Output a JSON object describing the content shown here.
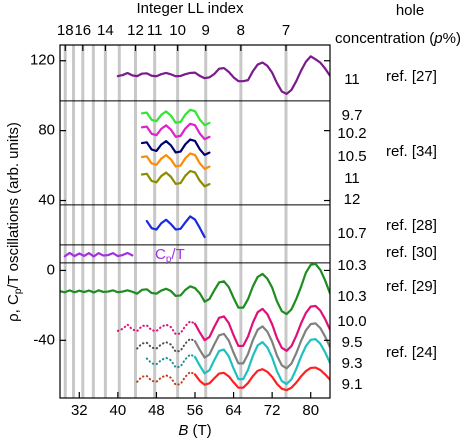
{
  "chart_data": {
    "type": "line",
    "x_label": [
      "B",
      " (T)"
    ],
    "y_label": [
      "ρ, C",
      "p",
      "/T oscillations (arb. units)"
    ],
    "x2_label": "Integer LL index",
    "right_header": [
      "hole",
      "concentration (",
      "p",
      "%)"
    ],
    "annotation": [
      "C",
      "p",
      "/T"
    ],
    "xlim": [
      28,
      84
    ],
    "xticks": [
      32,
      40,
      48,
      56,
      64,
      72,
      80
    ],
    "ylim": [
      -73,
      129
    ],
    "yticks": [
      -40,
      0,
      40,
      80,
      120
    ],
    "x2scale": "reciprocal",
    "x2lim": [
      18.7,
      6.24
    ],
    "x2ticks": [
      18,
      16,
      14,
      12,
      11,
      10,
      9,
      8,
      7
    ],
    "x2grid": [
      18,
      17,
      16,
      15,
      14,
      13,
      12,
      11,
      10,
      9,
      8,
      7
    ],
    "grid_color": "#c8c8c8",
    "dividers": [
      97,
      37.5,
      14.6,
      4.3
    ],
    "hole_labels": [
      "11",
      "9.7",
      "10.2",
      "10.5",
      "11",
      "12",
      "10.7",
      "10.3",
      "10.3",
      "10.0",
      "9.5",
      "9.3",
      "9.1"
    ],
    "refs": [
      "ref. [27]",
      "ref. [34]",
      "ref. [28]",
      "ref. [30]",
      "ref. [29]",
      "ref. [24]"
    ],
    "series": [
      {
        "color": "#7b1a8c",
        "x": [
          40,
          41,
          42,
          43,
          44,
          45,
          46,
          47,
          48,
          49,
          50,
          51,
          52,
          53,
          54,
          55,
          56,
          57,
          58,
          59,
          60,
          61,
          62,
          63,
          64,
          65,
          66,
          67,
          68,
          69,
          70,
          71,
          72,
          73,
          74,
          75,
          76,
          77,
          78,
          79,
          80,
          81,
          82,
          83,
          84
        ],
        "values": [
          111.2,
          111.8,
          113.0,
          111.6,
          111.2,
          112.6,
          112.8,
          111.4,
          111.1,
          112.3,
          113.0,
          112.2,
          111.1,
          111.3,
          112.3,
          113.0,
          113.2,
          111.3,
          110.0,
          110.5,
          112.4,
          115.4,
          115.8,
          113.6,
          110.5,
          108.3,
          108.3,
          108.9,
          114.0,
          117.8,
          119.0,
          117.1,
          113.2,
          107.2,
          102.4,
          101.0,
          103.3,
          108.3,
          114.3,
          119.4,
          122.5,
          120.8,
          118.9,
          115.5,
          111.4
        ]
      },
      {
        "color": "#33e633",
        "x": [
          45,
          46,
          47,
          48,
          49,
          50,
          51,
          52,
          53,
          54,
          55,
          56,
          57,
          58,
          59
        ],
        "values": [
          89.9,
          90.3,
          86.2,
          85.4,
          89.0,
          91.0,
          88.6,
          84.5,
          85.0,
          89.2,
          91.9,
          91.1,
          86.3,
          83.1,
          84.4
        ]
      },
      {
        "color": "#e020c8",
        "x": [
          45,
          46,
          47,
          48,
          49,
          50,
          51,
          52,
          53,
          54,
          55,
          56,
          57,
          58,
          59
        ],
        "values": [
          81.9,
          82.3,
          78.2,
          77.4,
          81.0,
          83.0,
          80.6,
          76.5,
          77.0,
          81.2,
          83.9,
          83.1,
          78.3,
          75.1,
          76.4
        ]
      },
      {
        "color": "#000070",
        "x": [
          45,
          46,
          47,
          48,
          49,
          50,
          51,
          52,
          53,
          54,
          55,
          56,
          57,
          58,
          59
        ],
        "values": [
          72.9,
          73.3,
          69.2,
          68.4,
          72.0,
          74.0,
          71.6,
          67.5,
          68.0,
          72.2,
          74.9,
          74.1,
          69.3,
          66.1,
          67.4
        ]
      },
      {
        "color": "#ff8c00",
        "x": [
          45,
          46,
          47,
          48,
          49,
          50,
          51,
          52,
          53,
          54,
          55,
          56,
          57,
          58,
          59
        ],
        "values": [
          64.9,
          65.3,
          61.2,
          60.4,
          64.0,
          66.0,
          63.6,
          59.5,
          60.0,
          64.2,
          66.9,
          66.1,
          61.3,
          58.1,
          59.4
        ]
      },
      {
        "color": "#8c8c00",
        "x": [
          45,
          46,
          47,
          48,
          49,
          50,
          51,
          52,
          53,
          54,
          55,
          56,
          57,
          58,
          59
        ],
        "values": [
          54.9,
          55.3,
          51.2,
          50.4,
          54.0,
          56.0,
          53.6,
          49.5,
          50.0,
          54.2,
          56.9,
          56.1,
          51.3,
          48.1,
          49.4
        ]
      },
      {
        "color": "#1a2ae0",
        "x": [
          46,
          47,
          48,
          49,
          50,
          51,
          52,
          53,
          54,
          55,
          56,
          57,
          58
        ],
        "values": [
          28.3,
          24.2,
          23.4,
          27.0,
          29.0,
          26.5,
          23.4,
          23.8,
          27.5,
          30.9,
          29.1,
          24.3,
          19.1
        ]
      },
      {
        "color": "#a030e0",
        "x": [
          29,
          30,
          31,
          32,
          33,
          34,
          35,
          36,
          37,
          38,
          39,
          40,
          41,
          42,
          43
        ],
        "values": [
          8.1,
          10.0,
          8.2,
          9.7,
          8.3,
          9.9,
          8.0,
          9.9,
          8.5,
          8.8,
          9.9,
          8.2,
          8.8,
          10.0,
          8.6
        ]
      },
      {
        "color": "#1e8c1e",
        "x": [
          28,
          29,
          30,
          31,
          32,
          33,
          34,
          35,
          36,
          37,
          38,
          39,
          40,
          41,
          42,
          43,
          44,
          45,
          46,
          47,
          48,
          49,
          50,
          51,
          52,
          53,
          54,
          55,
          56,
          57,
          58,
          59,
          60,
          61,
          62,
          63,
          64,
          65,
          66,
          67,
          68,
          69,
          70,
          71,
          72,
          73,
          74,
          75,
          76,
          77,
          78,
          79,
          80,
          81,
          82,
          83,
          84
        ],
        "values": [
          -11.9,
          -12.5,
          -11.4,
          -12.5,
          -11.6,
          -12.4,
          -11.5,
          -12.6,
          -11.4,
          -12.3,
          -12.1,
          -11.4,
          -12.5,
          -12.1,
          -11.4,
          -12.2,
          -13.3,
          -11.1,
          -10.8,
          -12.9,
          -13.3,
          -11.5,
          -10.5,
          -11.8,
          -14.6,
          -14.3,
          -11.1,
          -9.1,
          -10.1,
          -13.1,
          -17.9,
          -16.4,
          -11.4,
          -6.9,
          -6.2,
          -9.5,
          -15.7,
          -21.3,
          -21.3,
          -16.4,
          -9.2,
          -3.7,
          -2.0,
          -4.7,
          -9.8,
          -17.7,
          -23.3,
          -25.0,
          -22.3,
          -16.4,
          -9.3,
          -1.3,
          3.2,
          3.7,
          0.3,
          -5.8,
          -13.1
        ]
      },
      {
        "color": "#e0107a",
        "dotted": true,
        "x": [
          40,
          41,
          42,
          43,
          44,
          45,
          46,
          47,
          48,
          49,
          50,
          51,
          52,
          53,
          54,
          55,
          56
        ],
        "values": [
          -34.6,
          -33.4,
          -31.0,
          -33.8,
          -34.7,
          -31.8,
          -31.4,
          -34.2,
          -34.7,
          -32.3,
          -31.0,
          -32.4,
          -36.5,
          -36.0,
          -31.8,
          -29.1,
          -30.5
        ]
      },
      {
        "color": "#e0107a",
        "x": [
          56,
          57,
          58,
          59,
          60,
          61,
          62,
          63,
          64,
          65,
          66,
          67,
          68,
          69,
          70,
          71,
          72,
          73,
          74,
          75,
          76,
          77,
          78,
          79,
          80,
          81,
          82,
          83,
          84
        ],
        "values": [
          -30.5,
          -35.5,
          -39.9,
          -38.1,
          -32.3,
          -27.1,
          -26.3,
          -30.1,
          -37.1,
          -43.2,
          -43.2,
          -37.8,
          -29.9,
          -23.9,
          -22.0,
          -25.0,
          -30.8,
          -38.7,
          -44.3,
          -46.0,
          -43.3,
          -37.4,
          -30.3,
          -24.3,
          -20.7,
          -20.3,
          -23.0,
          -27.9,
          -33.9
        ]
      },
      {
        "color": "#505050",
        "dotted": true,
        "x": [
          44,
          45,
          46,
          47,
          48,
          49,
          50,
          51,
          52,
          53,
          54,
          55,
          56
        ],
        "values": [
          -44.7,
          -41.8,
          -41.4,
          -44.2,
          -44.7,
          -42.3,
          -41.0,
          -42.4,
          -46.5,
          -46.0,
          -41.8,
          -39.1,
          -40.5
        ]
      },
      {
        "color": "#808080",
        "x": [
          56,
          57,
          58,
          59,
          60,
          61,
          62,
          63,
          64,
          65,
          66,
          67,
          68,
          69,
          70,
          71,
          72,
          73,
          74,
          75,
          76,
          77,
          78,
          79,
          80,
          81,
          82,
          83,
          84
        ],
        "values": [
          -40.5,
          -45.5,
          -49.9,
          -48.1,
          -42.3,
          -37.1,
          -36.3,
          -40.1,
          -47.1,
          -53.2,
          -53.2,
          -47.8,
          -39.9,
          -33.9,
          -32.0,
          -35.0,
          -40.8,
          -48.7,
          -54.3,
          -56.0,
          -53.3,
          -47.4,
          -40.3,
          -34.3,
          -30.7,
          -30.3,
          -33.0,
          -37.9,
          -43.9
        ]
      },
      {
        "color": "#1a9090",
        "dotted": true,
        "x": [
          46,
          47,
          48,
          49,
          50,
          51,
          52,
          53,
          54,
          55,
          56
        ],
        "values": [
          -50.4,
          -53.2,
          -53.7,
          -51.3,
          -50.0,
          -51.4,
          -55.5,
          -55.0,
          -50.8,
          -48.1,
          -49.5
        ]
      },
      {
        "color": "#20c0c0",
        "x": [
          56,
          57,
          58,
          59,
          60,
          61,
          62,
          63,
          64,
          65,
          66,
          67,
          68,
          69,
          70,
          71,
          72,
          73,
          74,
          75,
          76,
          77,
          78,
          79,
          80,
          81,
          82,
          83,
          84
        ],
        "values": [
          -49.5,
          -54.5,
          -58.9,
          -57.1,
          -51.3,
          -46.1,
          -45.3,
          -49.1,
          -56.1,
          -62.2,
          -62.2,
          -56.8,
          -48.9,
          -42.9,
          -41.0,
          -44.0,
          -49.8,
          -57.7,
          -63.3,
          -65.0,
          -62.3,
          -56.4,
          -49.3,
          -43.3,
          -39.7,
          -39.3,
          -42.0,
          -46.9,
          -52.9
        ]
      },
      {
        "color": "#c04020",
        "dotted": true,
        "x": [
          44,
          45,
          46,
          47,
          48,
          49,
          50,
          51,
          52,
          53,
          54,
          55,
          56
        ],
        "values": [
          -63.7,
          -60.8,
          -60.4,
          -63.2,
          -63.7,
          -61.3,
          -60.0,
          -61.4,
          -65.5,
          -65.0,
          -60.8,
          -58.1,
          -59.5
        ]
      },
      {
        "color": "#ff2020",
        "x": [
          56,
          57,
          58,
          59,
          60,
          61,
          62,
          63,
          64,
          65,
          66,
          67,
          68,
          69,
          70,
          71,
          72,
          73,
          74,
          75,
          76,
          77,
          78,
          79,
          80,
          81,
          82,
          83,
          84
        ],
        "values": [
          -59.5,
          -63.2,
          -65.4,
          -64.6,
          -61.7,
          -59.0,
          -58.6,
          -60.6,
          -64.0,
          -67.1,
          -67.1,
          -64.4,
          -60.5,
          -57.4,
          -56.5,
          -58.0,
          -60.9,
          -64.9,
          -67.7,
          -68.5,
          -67.1,
          -64.2,
          -60.6,
          -57.6,
          -55.8,
          -55.6,
          -57.0,
          -59.5,
          -62.5
        ]
      }
    ]
  }
}
